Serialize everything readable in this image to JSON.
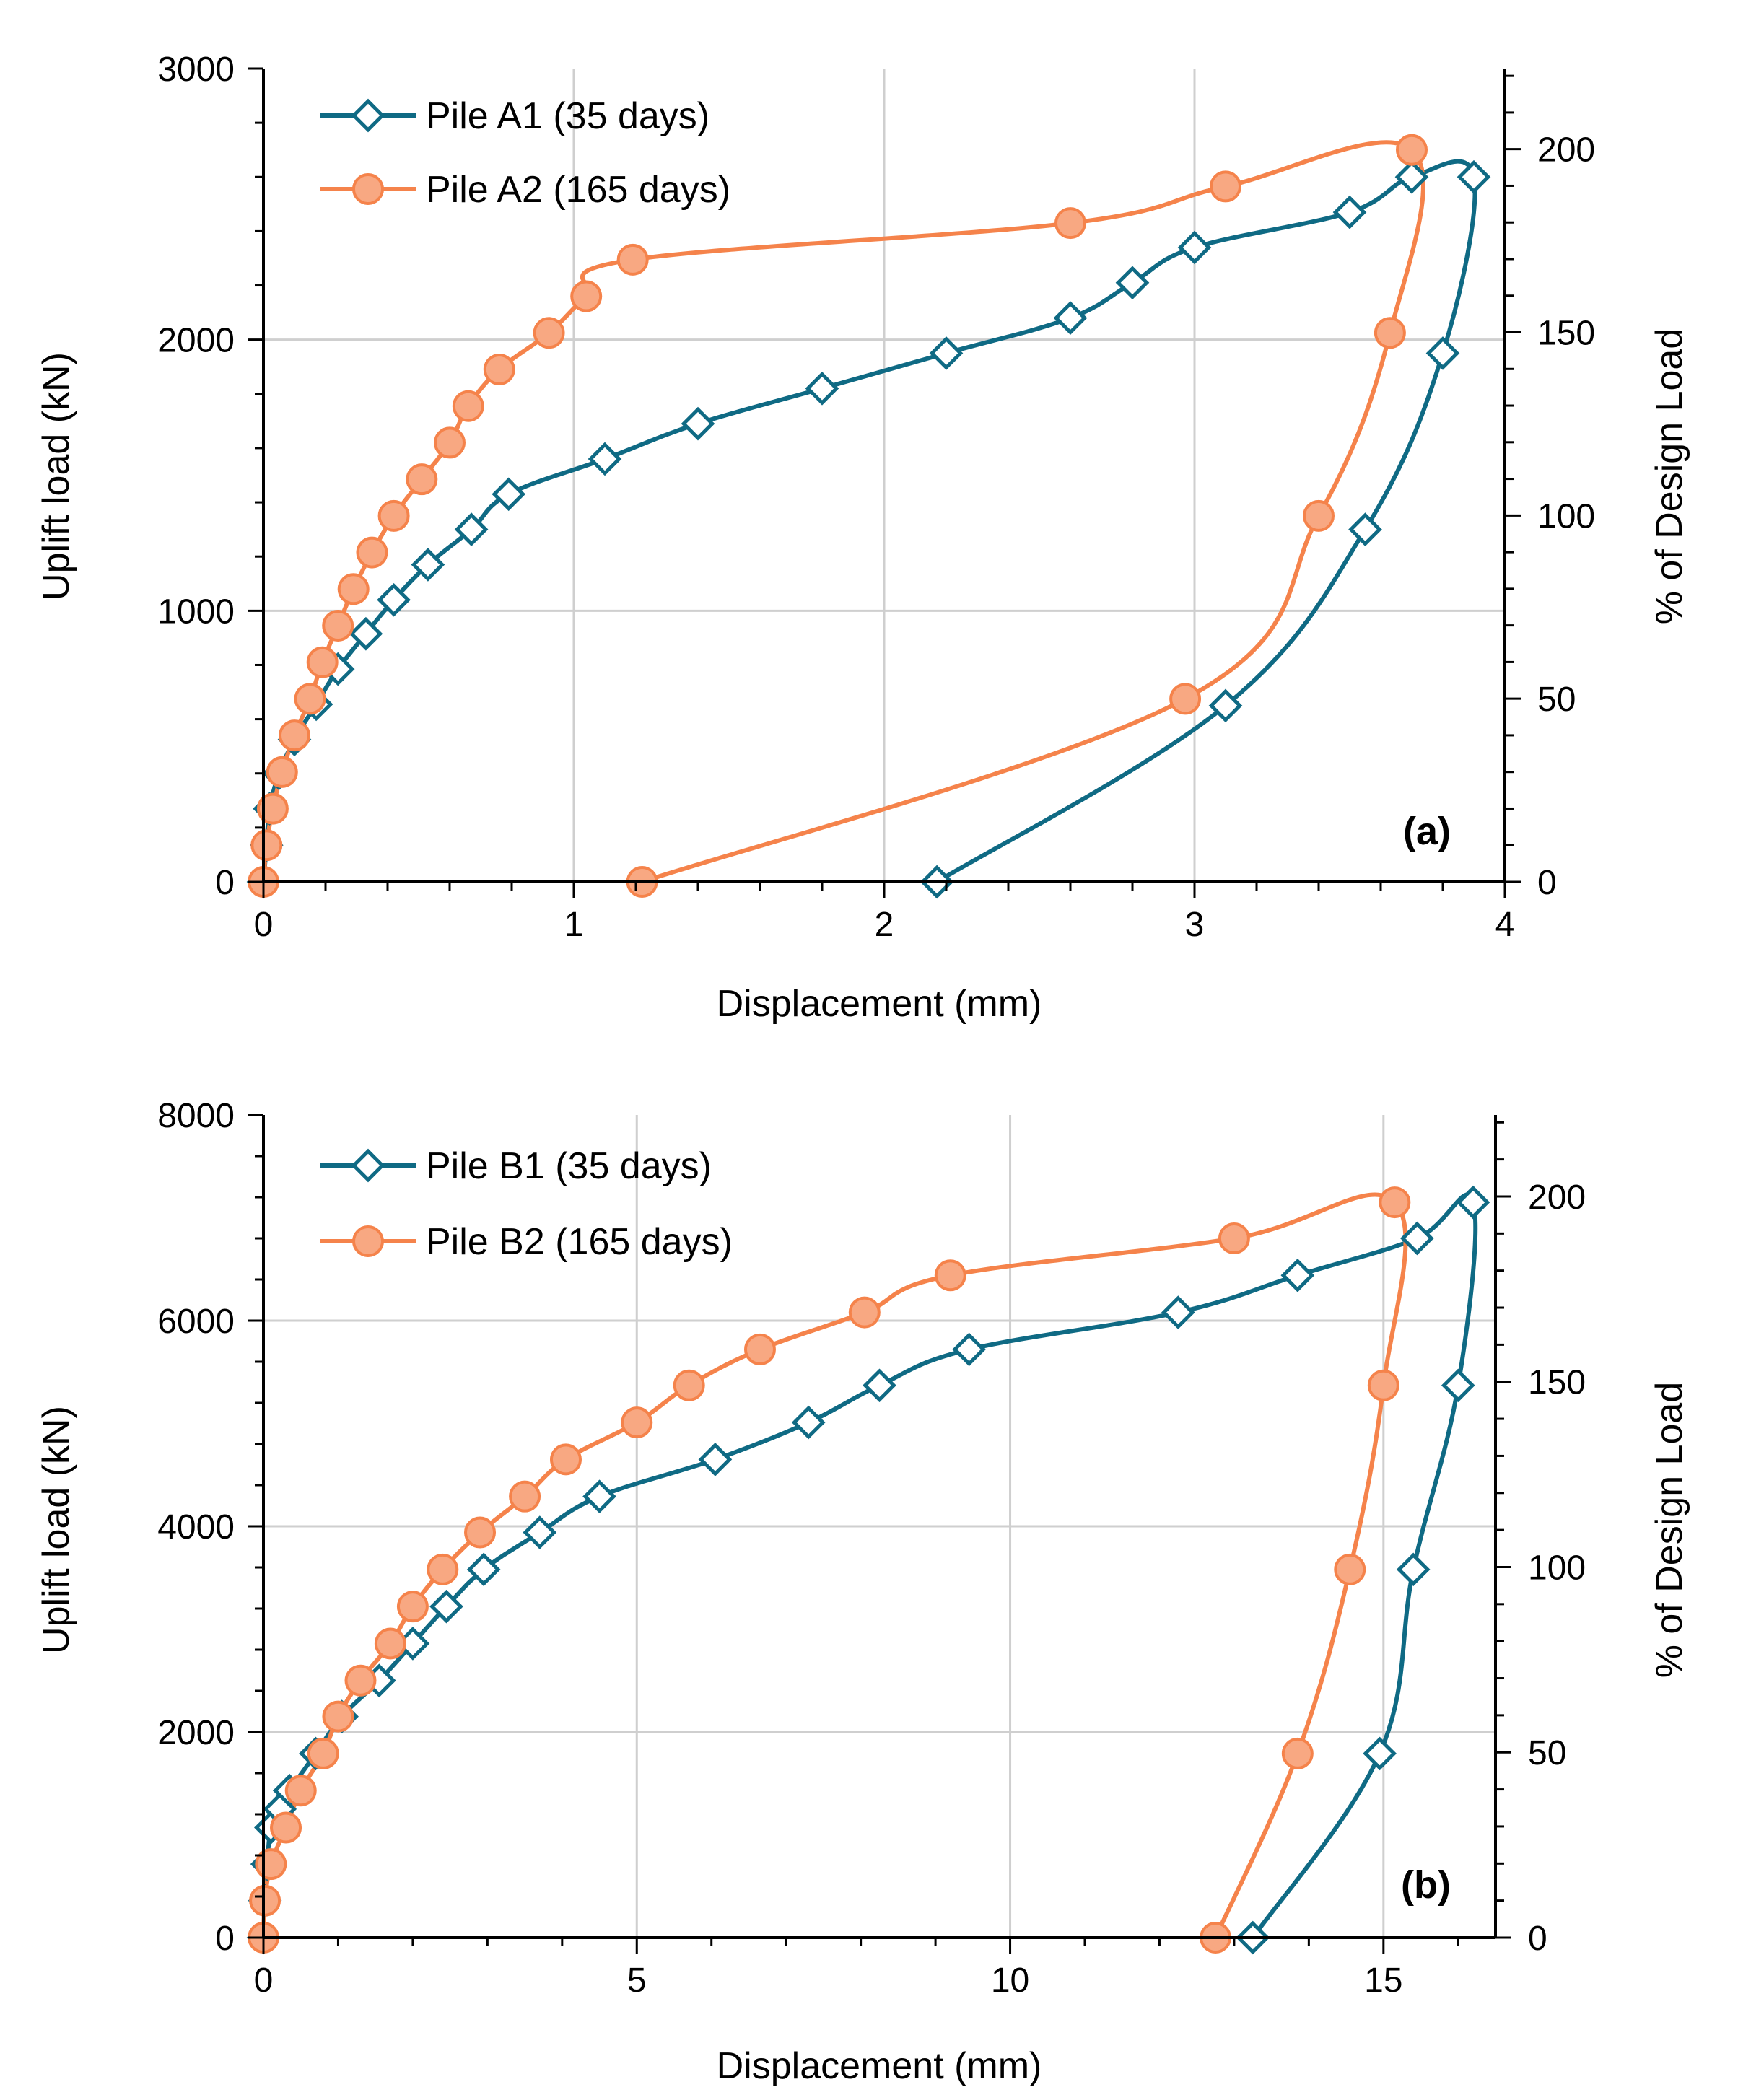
{
  "colors": {
    "blue": "#0f6a84",
    "orange": "#f5834b",
    "marker_orange": "#f8a882",
    "grid": "#cfcfcf",
    "axis": "#000000"
  },
  "chart_data": [
    {
      "type": "line",
      "panel_label": "(a)",
      "xlabel": "Displacement (mm)",
      "ylabel": "Uplift load (kN)",
      "y2label": "% of Design Load",
      "xlim": [
        0,
        4
      ],
      "ylim": [
        0,
        3000
      ],
      "y2lim": [
        0,
        222
      ],
      "xticks": [
        "0",
        "1",
        "2",
        "3",
        "4"
      ],
      "xtick_values": [
        0,
        1,
        2,
        3,
        4
      ],
      "yticks": [
        "0",
        "1000",
        "2000",
        "3000"
      ],
      "ytick_values": [
        0,
        1000,
        2000,
        3000
      ],
      "y2ticks": [
        "0",
        "50",
        "100",
        "150",
        "200"
      ],
      "y2tick_values": [
        0,
        50,
        100,
        150,
        200
      ],
      "legend_position": "top-left",
      "series": [
        {
          "name": "Pile A1 (35 days)",
          "marker": "diamond",
          "color": "#0f6a84",
          "x": [
            0,
            0.01,
            0.02,
            0.05,
            0.1,
            0.17,
            0.24,
            0.33,
            0.42,
            0.53,
            0.67,
            0.79,
            1.1,
            1.4,
            1.8,
            2.2,
            2.6,
            2.8,
            3.0,
            3.5,
            3.7,
            3.9,
            3.8,
            3.55,
            3.1,
            2.17
          ],
          "y": [
            0,
            135,
            270,
            400,
            525,
            655,
            785,
            915,
            1040,
            1170,
            1300,
            1430,
            1560,
            1690,
            1820,
            1950,
            2080,
            2210,
            2340,
            2470,
            2600,
            2600,
            1950,
            1300,
            650,
            0
          ]
        },
        {
          "name": "Pile A2 (165 days)",
          "marker": "circle",
          "color": "#f5834b",
          "x": [
            0,
            0.01,
            0.03,
            0.06,
            0.1,
            0.15,
            0.19,
            0.24,
            0.29,
            0.35,
            0.42,
            0.51,
            0.6,
            0.66,
            0.76,
            0.92,
            1.04,
            1.19,
            2.6,
            3.1,
            3.7,
            3.63,
            3.4,
            2.97,
            1.22
          ],
          "y": [
            0,
            135,
            270,
            405,
            540,
            675,
            810,
            945,
            1080,
            1215,
            1350,
            1485,
            1620,
            1755,
            1890,
            2025,
            2160,
            2295,
            2430,
            2565,
            2700,
            2025,
            1350,
            675,
            0
          ]
        }
      ]
    },
    {
      "type": "line",
      "panel_label": "(b)",
      "xlabel": "Displacement (mm)",
      "ylabel": "Uplift load (kN)",
      "y2label": "% of Design Load",
      "xlim": [
        0,
        16.5
      ],
      "ylim": [
        0,
        8000
      ],
      "y2lim": [
        0,
        222
      ],
      "xticks": [
        "0",
        "5",
        "10",
        "15"
      ],
      "xtick_values": [
        0,
        5,
        10,
        15
      ],
      "yticks": [
        "0",
        "2000",
        "4000",
        "6000",
        "8000"
      ],
      "ytick_values": [
        0,
        2000,
        4000,
        6000,
        8000
      ],
      "y2ticks": [
        "0",
        "50",
        "100",
        "150",
        "200"
      ],
      "y2tick_values": [
        0,
        50,
        100,
        150,
        200
      ],
      "legend_position": "top-left",
      "series": [
        {
          "name": "Pile B1 (35 days)",
          "marker": "diamond",
          "color": "#0f6a84",
          "x": [
            0,
            0.02,
            0.05,
            0.1,
            0.22,
            0.35,
            0.7,
            1.05,
            1.55,
            2.0,
            2.45,
            2.95,
            3.7,
            4.5,
            6.05,
            7.3,
            8.25,
            9.45,
            12.25,
            13.85,
            15.45,
            16.2,
            16.0,
            15.4,
            14.95,
            13.25
          ],
          "y": [
            0,
            360,
            715,
            1070,
            1250,
            1430,
            1790,
            2150,
            2500,
            2860,
            3220,
            3580,
            3940,
            4290,
            4650,
            5010,
            5370,
            5720,
            6080,
            6440,
            6800,
            7150,
            5370,
            3580,
            1790,
            0
          ]
        },
        {
          "name": "Pile B2 (165 days)",
          "marker": "circle",
          "color": "#f5834b",
          "x": [
            0,
            0.02,
            0.1,
            0.3,
            0.5,
            0.8,
            1.0,
            1.3,
            1.7,
            2.0,
            2.4,
            2.9,
            3.5,
            4.05,
            5.0,
            5.7,
            6.65,
            8.05,
            9.2,
            13.0,
            15.15,
            15.0,
            14.55,
            13.85,
            12.75
          ],
          "y": [
            0,
            360,
            715,
            1070,
            1430,
            1790,
            2150,
            2500,
            2860,
            3220,
            3580,
            3940,
            4290,
            4650,
            5010,
            5370,
            5720,
            6080,
            6440,
            6800,
            7150,
            5370,
            3580,
            1790,
            0
          ]
        }
      ]
    }
  ]
}
